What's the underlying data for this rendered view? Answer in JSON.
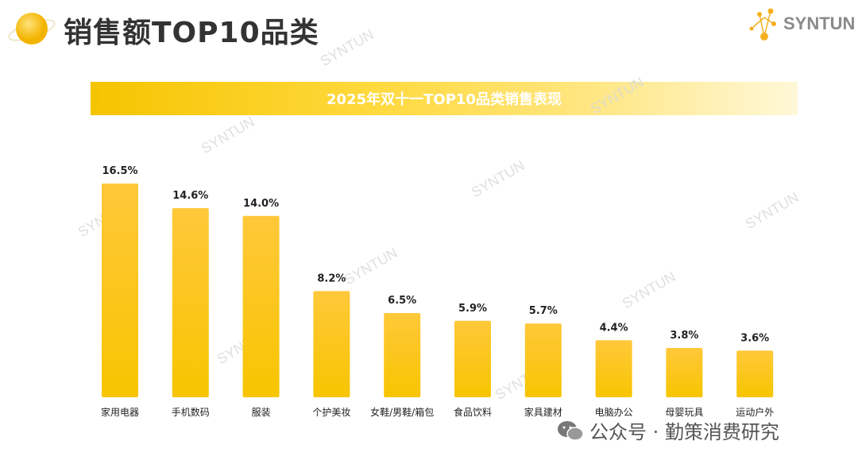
{
  "header": {
    "title": "销售额TOP10品类",
    "logo_text": "SYNTUN"
  },
  "watermark": "SYNTUN",
  "footer": {
    "text": "公众号 · 勤策消费研究",
    "icon": "wechat-icon"
  },
  "chart_data": {
    "type": "bar",
    "title": "2025年双十一TOP10品类销售表现",
    "categories": [
      "家用电器",
      "手机数码",
      "服装",
      "个护美妆",
      "女鞋/男鞋/箱包",
      "食品饮料",
      "家具建材",
      "电脑办公",
      "母婴玩具",
      "运动户外"
    ],
    "values": [
      16.5,
      14.6,
      14.0,
      8.2,
      6.5,
      5.9,
      5.7,
      4.4,
      3.8,
      3.6
    ],
    "labels": [
      "16.5%",
      "14.6%",
      "14.0%",
      "8.2%",
      "6.5%",
      "5.9%",
      "5.7%",
      "4.4%",
      "3.8%",
      "3.6%"
    ],
    "unit": "%",
    "ylim": [
      0,
      18
    ],
    "grid": false,
    "colors": {
      "bar_top": "#ffc83a",
      "bar_bottom": "#f7c500",
      "banner": "#f5c400"
    }
  }
}
